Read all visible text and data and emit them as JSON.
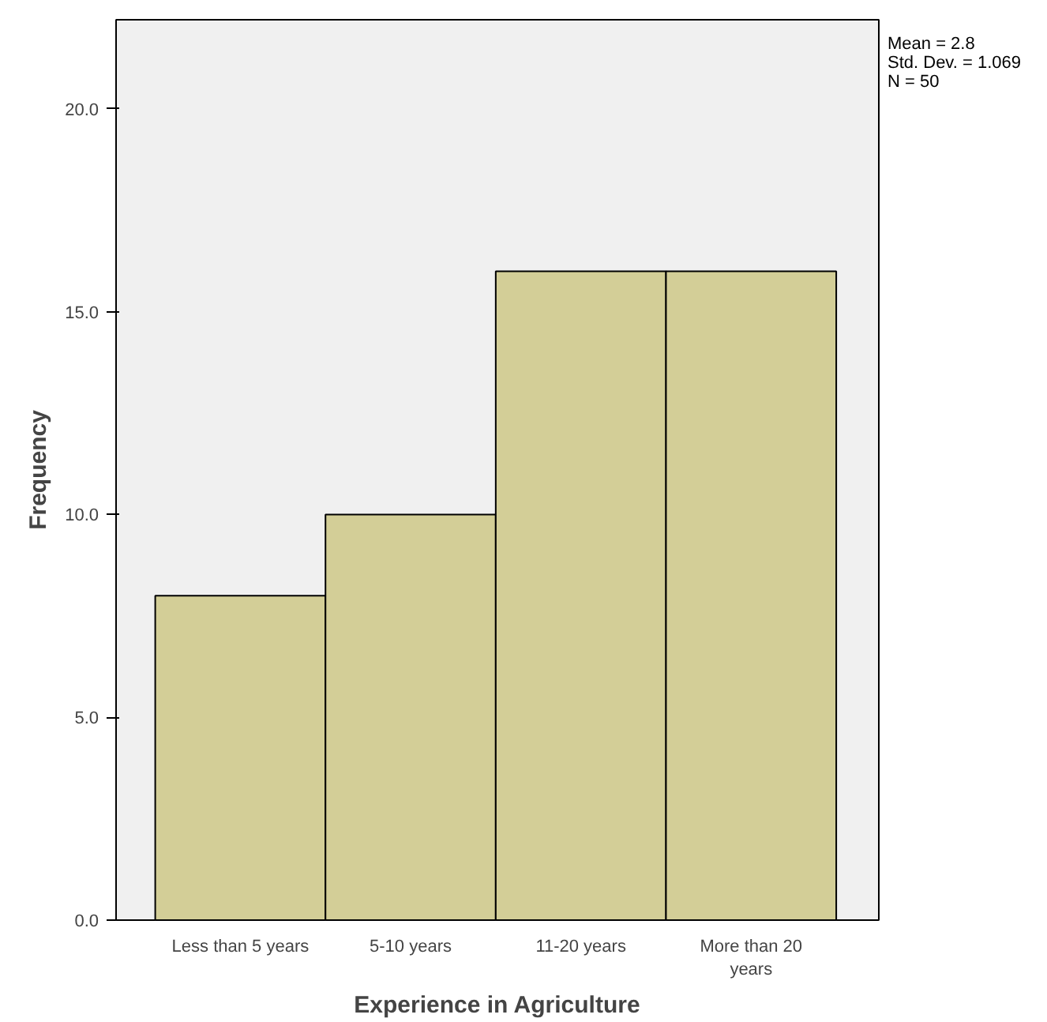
{
  "chart_data": {
    "type": "bar",
    "xlabel": "Experience in Agriculture",
    "ylabel": "Frequency",
    "categories": [
      "Less than 5 years",
      "5-10 years",
      "11-20 years",
      "More than 20 years"
    ],
    "values": [
      8,
      10,
      16,
      16
    ],
    "color": "#d3ce97",
    "ylim": [
      0,
      22.2
    ],
    "yticks": [
      {
        "value": 0,
        "label": "0.0"
      },
      {
        "value": 5,
        "label": "5.0"
      },
      {
        "value": 10,
        "label": "10.0"
      },
      {
        "value": 15,
        "label": "15.0"
      },
      {
        "value": 20,
        "label": "20.0"
      }
    ],
    "annotations": [
      "Mean = 2.8",
      "Std. Dev. = 1.069",
      "N = 50"
    ],
    "grid": false
  }
}
